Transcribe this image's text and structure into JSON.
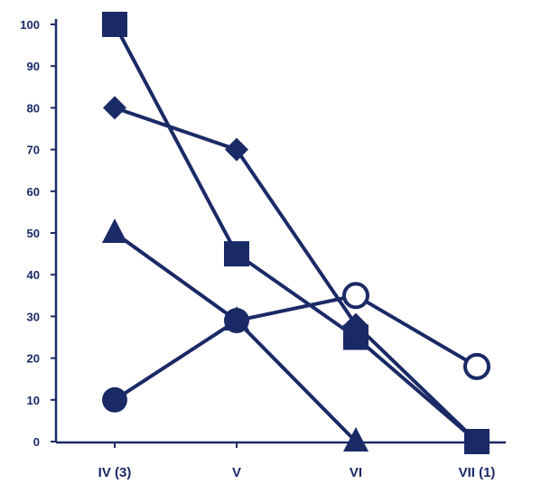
{
  "chart_data": {
    "type": "line",
    "title": "",
    "xlabel": "",
    "ylabel": "",
    "categories": [
      "IV (3)",
      "V",
      "VI",
      "VII (1)"
    ],
    "ylim": [
      0,
      100
    ],
    "yticks": [
      0,
      10,
      20,
      30,
      40,
      50,
      60,
      70,
      80,
      90,
      100
    ],
    "ytick_labels": [
      "0",
      "10",
      "20",
      "30",
      "40",
      "50",
      "60",
      "70",
      "80",
      "90",
      "100"
    ],
    "grid": false,
    "legend": "none",
    "color": "#1a2a66",
    "series": [
      {
        "marker": "square",
        "values": [
          100,
          45,
          25,
          0
        ]
      },
      {
        "marker": "diamond",
        "values": [
          80,
          70,
          28,
          0
        ]
      },
      {
        "marker": "triangle",
        "values": [
          50,
          29,
          0,
          null
        ]
      },
      {
        "marker": "circle",
        "values": [
          10,
          29,
          35,
          null
        ]
      },
      {
        "marker": "open-circle",
        "values": [
          null,
          null,
          35,
          18
        ]
      }
    ]
  }
}
